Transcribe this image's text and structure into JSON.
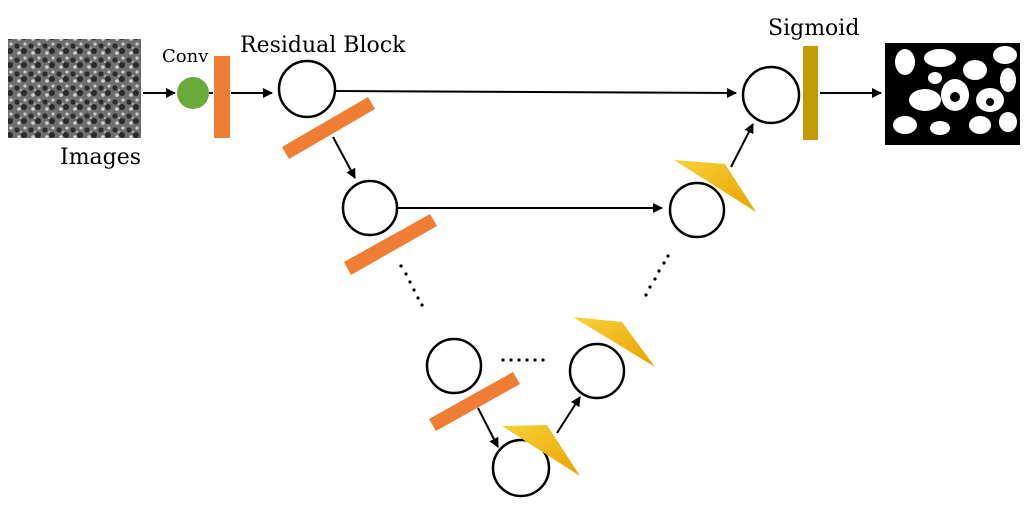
{
  "labels": {
    "conv": "Conv",
    "residual_block": "Residual Block",
    "images": "Images",
    "sigmoid": "Sigmoid"
  },
  "colors": {
    "conv_node": "#6aaa3a",
    "residual_bar": "#ef7d33",
    "upsample": "#f2b70f",
    "sigmoid_bar": "#c39a07",
    "line": "#000000"
  },
  "icons": {
    "input_image": "sem-texture-icon",
    "output_mask": "binary-mask-icon"
  }
}
